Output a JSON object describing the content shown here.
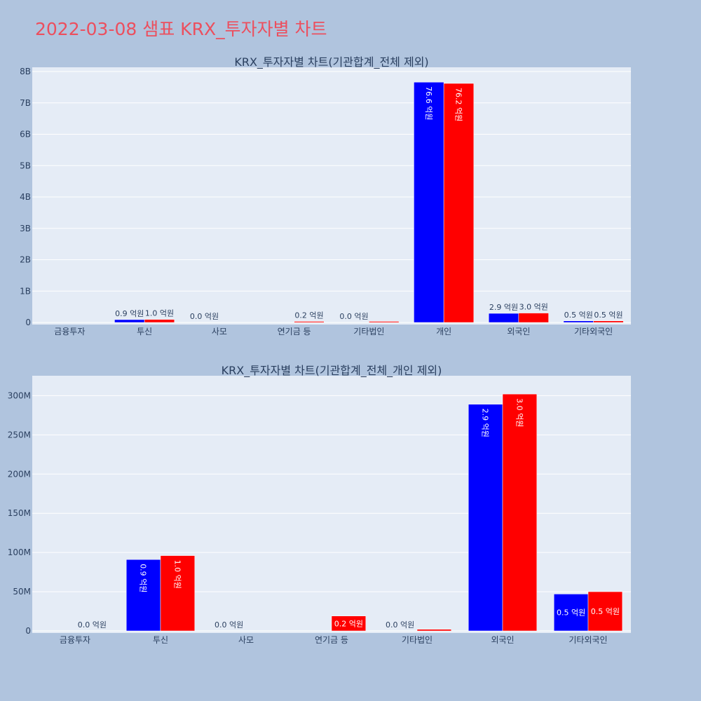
{
  "page": {
    "title": "2022-03-08 샘표 KRX_투자자별 차트"
  },
  "colors": {
    "background": "#b0c4de",
    "plot_bg": "#e5ecf6",
    "title": "#ec4f5e",
    "series_a": "#0000ff",
    "series_b": "#ff0000",
    "text": "#2a3f5f",
    "grid": "#ffffff"
  },
  "chart_data": [
    {
      "type": "bar",
      "title": "KRX_투자자별 차트(기관합계_전체 제외)",
      "categories": [
        "금융투자",
        "투신",
        "사모",
        "연기금 등",
        "기타법인",
        "개인",
        "외국인",
        "기타외국인"
      ],
      "ylim": [
        0,
        8000000000
      ],
      "yticks": [
        0,
        1000000000,
        2000000000,
        3000000000,
        4000000000,
        5000000000,
        6000000000,
        7000000000,
        8000000000
      ],
      "ytick_labels": [
        "0",
        "1B",
        "2B",
        "3B",
        "4B",
        "5B",
        "6B",
        "7B",
        "8B"
      ],
      "grid": true,
      "series": [
        {
          "color": "#0000ff",
          "values": [
            0,
            90000000,
            0,
            0,
            0,
            7660000000,
            290000000,
            50000000
          ],
          "labels": [
            "",
            "0.9 억원",
            "0.0 억원",
            "",
            "0.0 억원",
            "76.6 억원",
            "2.9 억원",
            "0.5 억원"
          ]
        },
        {
          "color": "#ff0000",
          "values": [
            0,
            96000000,
            0,
            20000000,
            2000000,
            7620000000,
            300000000,
            50000000
          ],
          "labels": [
            "",
            "1.0 억원",
            "",
            "0.2 억원",
            "",
            "76.2 억원",
            "3.0 억원",
            "0.5 억원"
          ]
        }
      ]
    },
    {
      "type": "bar",
      "title": "KRX_투자자별 차트(기관합계_전체_개인 제외)",
      "categories": [
        "금융투자",
        "투신",
        "사모",
        "연기금 등",
        "기타법인",
        "외국인",
        "기타외국인"
      ],
      "ylim": [
        0,
        320000000
      ],
      "yticks": [
        0,
        50000000,
        100000000,
        150000000,
        200000000,
        250000000,
        300000000
      ],
      "ytick_labels": [
        "0",
        "50M",
        "100M",
        "150M",
        "200M",
        "250M",
        "300M"
      ],
      "grid": true,
      "series": [
        {
          "color": "#0000ff",
          "values": [
            0,
            91000000,
            0,
            0,
            0,
            289000000,
            47000000
          ],
          "labels": [
            "",
            "0.9 억원",
            "0.0 억원",
            "",
            "0.0 억원",
            "2.9 억원",
            "0.5 억원"
          ]
        },
        {
          "color": "#ff0000",
          "values": [
            0,
            96000000,
            0,
            19000000,
            2000000,
            302000000,
            50000000
          ],
          "labels": [
            "0.0 억원",
            "1.0 억원",
            "",
            "0.2 억원",
            "",
            "3.0 억원",
            "0.5 억원"
          ]
        }
      ]
    }
  ]
}
